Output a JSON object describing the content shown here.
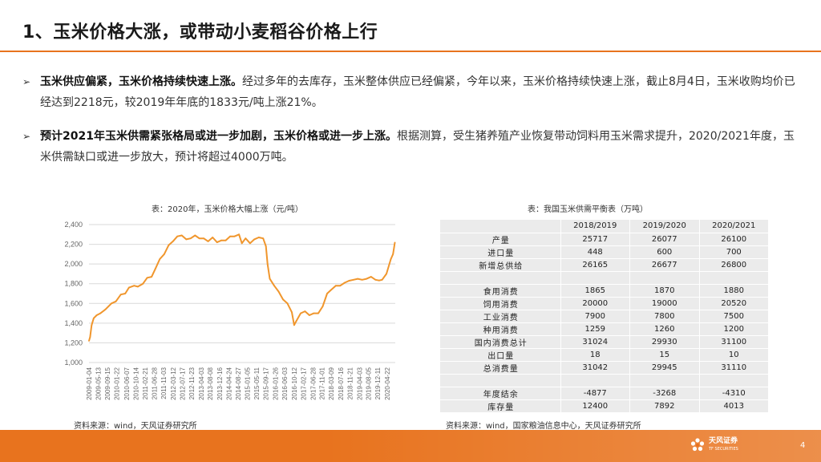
{
  "slide": {
    "title": "1、玉米价格大涨，或带动小麦稻谷价格上行",
    "page_number": "4"
  },
  "bullets": [
    {
      "arrow": "➢",
      "bold": "玉米供应偏紧，玉米价格持续快速上涨。",
      "text": "经过多年的去库存，玉米整体供应已经偏紧，今年以来，玉米价格持续快速上涨，截止8月4日，玉米收购均价已经达到2218元，较2019年年底的1833元/吨上涨21%。"
    },
    {
      "arrow": "➢",
      "bold": "预计2021年玉米供需紧张格局或进一步加剧，玉米价格或进一步上涨。",
      "text": "根据测算，受生猪养殖产业恢复带动饲料用玉米需求提升，2020/2021年度，玉米供需缺口或进一步放大，预计将超过4000万吨。"
    }
  ],
  "chart_caption": "表：2020年，玉米价格大幅上涨（元/吨）",
  "chart_source": "资料来源：wind，天风证券研究所",
  "chart_data": {
    "type": "line",
    "title": "表：2020年，玉米价格大幅上涨（元/吨）",
    "xlabel": "",
    "ylabel": "",
    "ylim": [
      1000,
      2400
    ],
    "yticks": [
      1000,
      1200,
      1400,
      1600,
      1800,
      2000,
      2200,
      2400
    ],
    "grid": true,
    "color": "#f0962d",
    "x_tick_labels": [
      "2009-01-04",
      "2009-05-13",
      "2009-09-15",
      "2010-01-22",
      "2010-06-07",
      "2010-10-14",
      "2011-02-21",
      "2011-06-28",
      "2011-11-03",
      "2012-03-12",
      "2012-07-17",
      "2012-11-23",
      "2013-04-03",
      "2013-08-08",
      "2013-12-16",
      "2014-04-24",
      "2014-08-27",
      "2015-01-05",
      "2015-05-11",
      "2015-09-17",
      "2016-01-26",
      "2016-06-03",
      "2016-10-12",
      "2017-02-17",
      "2017-06-28",
      "2017-11-01",
      "2018-03-09",
      "2018-07-16",
      "2018-11-21",
      "2019-04-03",
      "2019-08-05",
      "2019-12-11",
      "2020-04-22"
    ],
    "series": [
      {
        "x": [
          "2009-01-04",
          "2009-01-20",
          "2009-02-10",
          "2009-03-10",
          "2009-04-20",
          "2009-06-10",
          "2009-08-20",
          "2009-11-10",
          "2010-01-10",
          "2010-03-20",
          "2010-05-20",
          "2010-07-10",
          "2010-09-20",
          "2010-11-10",
          "2011-01-20",
          "2011-03-20",
          "2011-05-20",
          "2011-07-10",
          "2011-09-10",
          "2011-11-10",
          "2012-01-10",
          "2012-03-10",
          "2012-05-10",
          "2012-07-10",
          "2012-09-10",
          "2012-11-10",
          "2013-01-10",
          "2013-03-10",
          "2013-05-10",
          "2013-07-10",
          "2013-09-10",
          "2013-11-10",
          "2014-01-10",
          "2014-03-10",
          "2014-05-10",
          "2014-07-10",
          "2014-09-10",
          "2014-10-20",
          "2014-12-10",
          "2015-02-10",
          "2015-04-10",
          "2015-06-10",
          "2015-08-10",
          "2015-09-17",
          "2015-10-10",
          "2015-11-10",
          "2016-01-10",
          "2016-03-10",
          "2016-05-10",
          "2016-07-10",
          "2016-09-10",
          "2016-10-12",
          "2016-11-10",
          "2017-01-10",
          "2017-03-10",
          "2017-05-10",
          "2017-07-10",
          "2017-09-10",
          "2017-11-10",
          "2018-01-10",
          "2018-03-10",
          "2018-05-10",
          "2018-07-10",
          "2018-09-10",
          "2018-11-10",
          "2019-01-10",
          "2019-03-10",
          "2019-05-10",
          "2019-07-10",
          "2019-09-10",
          "2019-11-10",
          "2019-12-31",
          "2020-02-10",
          "2020-04-10",
          "2020-06-10",
          "2020-07-10",
          "2020-08-04"
        ],
        "y": [
          1220,
          1260,
          1380,
          1450,
          1480,
          1500,
          1540,
          1600,
          1620,
          1690,
          1700,
          1760,
          1780,
          1770,
          1800,
          1860,
          1870,
          1950,
          2050,
          2100,
          2190,
          2230,
          2280,
          2290,
          2250,
          2260,
          2290,
          2260,
          2260,
          2230,
          2270,
          2220,
          2240,
          2240,
          2280,
          2280,
          2300,
          2210,
          2260,
          2210,
          2250,
          2270,
          2260,
          2180,
          2000,
          1850,
          1780,
          1720,
          1640,
          1600,
          1510,
          1380,
          1420,
          1500,
          1520,
          1480,
          1500,
          1500,
          1570,
          1700,
          1740,
          1780,
          1780,
          1810,
          1830,
          1840,
          1850,
          1840,
          1850,
          1870,
          1840,
          1833,
          1840,
          1900,
          2050,
          2100,
          2218
        ]
      }
    ]
  },
  "table_caption": "表：我国玉米供需平衡表（万吨）",
  "table_source": "资料来源：wind，国家粮油信息中心，天风证券研究所",
  "table": {
    "headers": [
      "",
      "2018/2019",
      "2019/2020",
      "2020/2021"
    ],
    "rows": [
      [
        "产量",
        "25717",
        "26077",
        "26100"
      ],
      [
        "进口量",
        "448",
        "600",
        "700"
      ],
      [
        "新增总供给",
        "26165",
        "26677",
        "26800"
      ],
      [
        "",
        "",
        "",
        ""
      ],
      [
        "食用消费",
        "1865",
        "1870",
        "1880"
      ],
      [
        "饲用消费",
        "20000",
        "19000",
        "20520"
      ],
      [
        "工业消费",
        "7900",
        "7800",
        "7500"
      ],
      [
        "种用消费",
        "1259",
        "1260",
        "1200"
      ],
      [
        "国内消费总计",
        "31024",
        "29930",
        "31100"
      ],
      [
        "出口量",
        "18",
        "15",
        "10"
      ],
      [
        "总消费量",
        "31042",
        "29945",
        "31110"
      ],
      [
        "",
        "",
        "",
        ""
      ],
      [
        "年度结余",
        "-4877",
        "-3268",
        "-4310"
      ],
      [
        "库存量",
        "12400",
        "7892",
        "4013"
      ]
    ]
  },
  "logo": {
    "name": "天风证券",
    "sub": "TF SECURITIES",
    "icon": "tf-securities-logo-icon",
    "color": "#ffffff"
  },
  "colors": {
    "accent": "#e8731e",
    "line": "#f0962d"
  }
}
